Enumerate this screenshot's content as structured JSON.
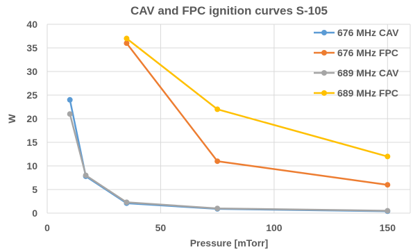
{
  "chart_data": {
    "type": "line",
    "title": "CAV and FPC ignition curves S-105",
    "xlabel": "Pressure  [mTorr]",
    "ylabel": "W",
    "xlim": [
      0,
      160
    ],
    "ylim": [
      0,
      40
    ],
    "xticks": [
      0,
      50,
      100,
      150
    ],
    "yticks": [
      0,
      5,
      10,
      15,
      20,
      25,
      30,
      35,
      40
    ],
    "grid": true,
    "legend_position": "right",
    "series": [
      {
        "name": "676 MHz CAV",
        "color": "#5b9bd5",
        "points": [
          [
            10,
            24
          ],
          [
            17,
            7.8
          ],
          [
            35,
            2.1
          ],
          [
            75,
            0.9
          ],
          [
            150,
            0.4
          ]
        ]
      },
      {
        "name": "676 MHz FPC",
        "color": "#ed7d31",
        "points": [
          [
            35,
            36
          ],
          [
            75,
            11
          ],
          [
            150,
            6
          ]
        ]
      },
      {
        "name": "689 MHz CAV",
        "color": "#a5a5a5",
        "points": [
          [
            10,
            21
          ],
          [
            17,
            8
          ],
          [
            35,
            2.3
          ],
          [
            75,
            1
          ],
          [
            150,
            0.5
          ]
        ]
      },
      {
        "name": "689 MHz FPC",
        "color": "#ffc000",
        "points": [
          [
            35,
            37
          ],
          [
            75,
            22
          ],
          [
            150,
            12
          ]
        ]
      }
    ]
  }
}
